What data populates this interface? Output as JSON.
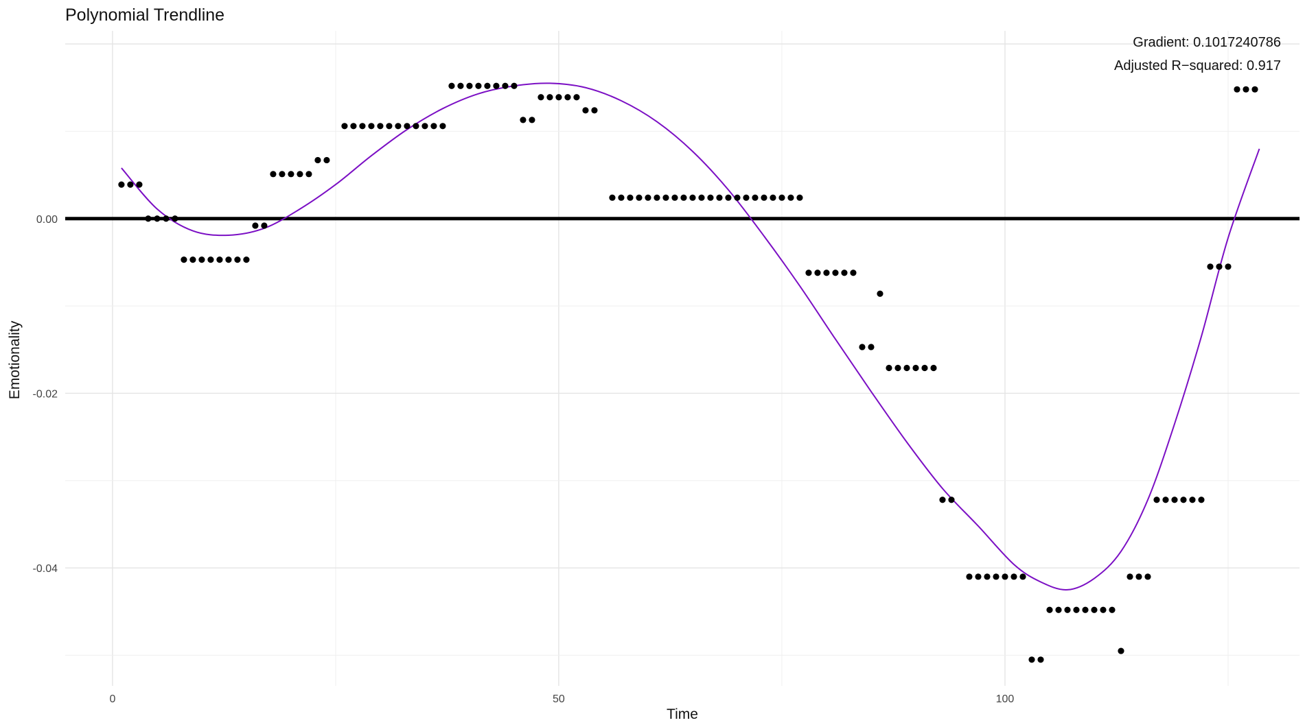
{
  "chart_data": {
    "type": "scatter",
    "title": "Polynomial Trendline",
    "xlabel": "Time",
    "ylabel": "Emotionality",
    "xlim": [
      -5.3,
      133
    ],
    "ylim": [
      -0.0535,
      0.0215
    ],
    "x_ticks": [
      0,
      50,
      100
    ],
    "x_tick_labels": [
      "0",
      "50",
      "100"
    ],
    "y_ticks": [
      0.0,
      -0.02,
      -0.04
    ],
    "y_tick_labels": [
      "0.00",
      "-0.02",
      "-0.04"
    ],
    "grid": true,
    "legend": "none",
    "reference_line": {
      "y": 0,
      "color": "#000000"
    },
    "annotations": [
      {
        "text": "Gradient: 0.1017240786",
        "position": "top-right"
      },
      {
        "text": "Adjusted R−squared: 0.917",
        "position": "top-right"
      }
    ],
    "series": [
      {
        "type": "scatter",
        "color": "#000000",
        "points": [
          [
            1,
            0.0039
          ],
          [
            2,
            0.0039
          ],
          [
            3,
            0.0039
          ],
          [
            4,
            0.0
          ],
          [
            5,
            0.0
          ],
          [
            6,
            0.0
          ],
          [
            7,
            0.0
          ],
          [
            8,
            -0.0047
          ],
          [
            9,
            -0.0047
          ],
          [
            10,
            -0.0047
          ],
          [
            11,
            -0.0047
          ],
          [
            12,
            -0.0047
          ],
          [
            13,
            -0.0047
          ],
          [
            14,
            -0.0047
          ],
          [
            15,
            -0.0047
          ],
          [
            16,
            -0.0008
          ],
          [
            17,
            -0.0008
          ],
          [
            18,
            0.0051
          ],
          [
            19,
            0.0051
          ],
          [
            20,
            0.0051
          ],
          [
            21,
            0.0051
          ],
          [
            22,
            0.0051
          ],
          [
            23,
            0.0067
          ],
          [
            24,
            0.0067
          ],
          [
            26,
            0.0106
          ],
          [
            27,
            0.0106
          ],
          [
            28,
            0.0106
          ],
          [
            29,
            0.0106
          ],
          [
            30,
            0.0106
          ],
          [
            31,
            0.0106
          ],
          [
            32,
            0.0106
          ],
          [
            33,
            0.0106
          ],
          [
            34,
            0.0106
          ],
          [
            35,
            0.0106
          ],
          [
            36,
            0.0106
          ],
          [
            37,
            0.0106
          ],
          [
            38,
            0.0152
          ],
          [
            39,
            0.0152
          ],
          [
            40,
            0.0152
          ],
          [
            41,
            0.0152
          ],
          [
            42,
            0.0152
          ],
          [
            43,
            0.0152
          ],
          [
            44,
            0.0152
          ],
          [
            45,
            0.0152
          ],
          [
            46,
            0.0113
          ],
          [
            47,
            0.0113
          ],
          [
            48,
            0.0139
          ],
          [
            49,
            0.0139
          ],
          [
            50,
            0.0139
          ],
          [
            51,
            0.0139
          ],
          [
            52,
            0.0139
          ],
          [
            53,
            0.0124
          ],
          [
            54,
            0.0124
          ],
          [
            56,
            0.0024
          ],
          [
            57,
            0.0024
          ],
          [
            58,
            0.0024
          ],
          [
            59,
            0.0024
          ],
          [
            60,
            0.0024
          ],
          [
            61,
            0.0024
          ],
          [
            62,
            0.0024
          ],
          [
            63,
            0.0024
          ],
          [
            64,
            0.0024
          ],
          [
            65,
            0.0024
          ],
          [
            66,
            0.0024
          ],
          [
            67,
            0.0024
          ],
          [
            68,
            0.0024
          ],
          [
            69,
            0.0024
          ],
          [
            70,
            0.0024
          ],
          [
            71,
            0.0024
          ],
          [
            72,
            0.0024
          ],
          [
            73,
            0.0024
          ],
          [
            74,
            0.0024
          ],
          [
            75,
            0.0024
          ],
          [
            76,
            0.0024
          ],
          [
            77,
            0.0024
          ],
          [
            78,
            -0.0062
          ],
          [
            79,
            -0.0062
          ],
          [
            80,
            -0.0062
          ],
          [
            81,
            -0.0062
          ],
          [
            82,
            -0.0062
          ],
          [
            83,
            -0.0062
          ],
          [
            84,
            -0.0147
          ],
          [
            85,
            -0.0147
          ],
          [
            86,
            -0.0086
          ],
          [
            87,
            -0.0171
          ],
          [
            88,
            -0.0171
          ],
          [
            89,
            -0.0171
          ],
          [
            90,
            -0.0171
          ],
          [
            91,
            -0.0171
          ],
          [
            92,
            -0.0171
          ],
          [
            93,
            -0.0322
          ],
          [
            94,
            -0.0322
          ],
          [
            96,
            -0.041
          ],
          [
            97,
            -0.041
          ],
          [
            98,
            -0.041
          ],
          [
            99,
            -0.041
          ],
          [
            100,
            -0.041
          ],
          [
            101,
            -0.041
          ],
          [
            102,
            -0.041
          ],
          [
            103,
            -0.0505
          ],
          [
            104,
            -0.0505
          ],
          [
            105,
            -0.0448
          ],
          [
            106,
            -0.0448
          ],
          [
            107,
            -0.0448
          ],
          [
            108,
            -0.0448
          ],
          [
            109,
            -0.0448
          ],
          [
            110,
            -0.0448
          ],
          [
            111,
            -0.0448
          ],
          [
            112,
            -0.0448
          ],
          [
            113,
            -0.0495
          ],
          [
            114,
            -0.041
          ],
          [
            115,
            -0.041
          ],
          [
            116,
            -0.041
          ],
          [
            117,
            -0.0322
          ],
          [
            118,
            -0.0322
          ],
          [
            119,
            -0.0322
          ],
          [
            120,
            -0.0322
          ],
          [
            121,
            -0.0322
          ],
          [
            122,
            -0.0322
          ],
          [
            123,
            -0.0055
          ],
          [
            124,
            -0.0055
          ],
          [
            125,
            -0.0055
          ],
          [
            126,
            0.0148
          ],
          [
            127,
            0.0148
          ],
          [
            128,
            0.0148
          ]
        ]
      },
      {
        "type": "line",
        "color": "#7b0fc4",
        "points": [
          [
            1,
            0.0058
          ],
          [
            5,
            0.0011
          ],
          [
            9,
            -0.0014
          ],
          [
            13,
            -0.0019
          ],
          [
            17,
            -0.0011
          ],
          [
            21,
            0.0011
          ],
          [
            25,
            0.0039
          ],
          [
            29,
            0.0072
          ],
          [
            33,
            0.0102
          ],
          [
            37,
            0.0126
          ],
          [
            41,
            0.0143
          ],
          [
            45,
            0.0152
          ],
          [
            49,
            0.0155
          ],
          [
            53,
            0.015
          ],
          [
            57,
            0.0135
          ],
          [
            61,
            0.0111
          ],
          [
            65,
            0.0077
          ],
          [
            69,
            0.0033
          ],
          [
            73,
            -0.002
          ],
          [
            77,
            -0.0077
          ],
          [
            81,
            -0.0138
          ],
          [
            85,
            -0.0198
          ],
          [
            89,
            -0.0256
          ],
          [
            93,
            -0.0309
          ],
          [
            97,
            -0.0352
          ],
          [
            101,
            -0.0396
          ],
          [
            104,
            -0.0416
          ],
          [
            107,
            -0.0425
          ],
          [
            110,
            -0.0412
          ],
          [
            113,
            -0.0381
          ],
          [
            116,
            -0.0322
          ],
          [
            119,
            -0.0235
          ],
          [
            122,
            -0.0135
          ],
          [
            125,
            -0.0022
          ],
          [
            128.5,
            0.008
          ]
        ]
      }
    ]
  }
}
